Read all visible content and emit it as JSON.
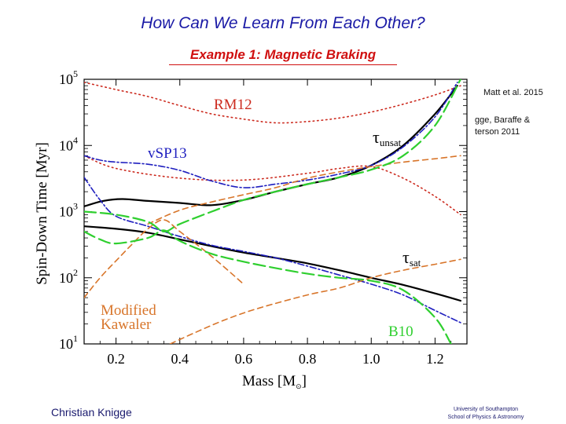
{
  "slide": {
    "title": "How Can We Learn From Each Other?",
    "subtitle": "Example 1: Magnetic Braking",
    "citation_1": "Matt et al. 2015",
    "citation_2": "gge, Baraffe & terson 2011",
    "author": "Christian Knigge",
    "institution_1": "University of Southampton",
    "institution_2": "School of Physics & Astronomy"
  },
  "colors": {
    "rm12": "#cc2a1e",
    "vsp13": "#1f1fbf",
    "modified_kawaler": "#d8752a",
    "b10": "#2fcf2f",
    "tau": "#000000"
  },
  "chart_data": {
    "type": "line",
    "xlabel": "Mass [M",
    "xlabel_suffix": "]",
    "ylabel": "Spin-Down Time [Myr]",
    "xlim": [
      0.1,
      1.3
    ],
    "ylim": [
      10,
      100000
    ],
    "yscale": "log",
    "xticks": [
      "0.2",
      "0.4",
      "0.6",
      "0.8",
      "1.0",
      "1.2"
    ],
    "yticks": [
      {
        "base": "10",
        "exp": "1"
      },
      {
        "base": "10",
        "exp": "2"
      },
      {
        "base": "10",
        "exp": "3"
      },
      {
        "base": "10",
        "exp": "4"
      },
      {
        "base": "10",
        "exp": "5"
      }
    ],
    "annotations": {
      "rm12": "RM12",
      "vsp13": "vSP13",
      "tau_unsat": "τ",
      "tau_unsat_sub": "unsat",
      "tau_sat": "τ",
      "tau_sat_sub": "sat",
      "modified_line1": "Modified",
      "modified_line2": "Kawaler",
      "b10": "B10"
    },
    "series": [
      {
        "key": "tau_unsat",
        "style": "solid",
        "color": "#000000",
        "x": [
          0.1,
          0.16,
          0.22,
          0.3,
          0.4,
          0.5,
          0.6,
          0.7,
          0.8,
          0.9,
          1.0,
          1.1,
          1.2,
          1.27
        ],
        "y": [
          1200,
          1450,
          1550,
          1450,
          1350,
          1250,
          1500,
          2000,
          2600,
          3300,
          5000,
          10000,
          30000,
          80000
        ]
      },
      {
        "key": "tau_sat",
        "style": "solid",
        "color": "#000000",
        "x": [
          0.1,
          0.2,
          0.3,
          0.4,
          0.5,
          0.6,
          0.7,
          0.8,
          0.9,
          1.0,
          1.1,
          1.2,
          1.28
        ],
        "y": [
          600,
          550,
          480,
          380,
          300,
          240,
          200,
          165,
          130,
          100,
          78,
          58,
          45
        ]
      },
      {
        "key": "rm12_upper",
        "style": "dotted",
        "color": "#cc2a1e",
        "x": [
          0.1,
          0.2,
          0.3,
          0.4,
          0.5,
          0.6,
          0.7,
          0.8,
          0.9,
          1.0,
          1.1,
          1.2,
          1.28
        ],
        "y": [
          90000,
          70000,
          55000,
          40000,
          30000,
          25000,
          22000,
          23000,
          26000,
          32000,
          42000,
          58000,
          80000
        ]
      },
      {
        "key": "rm12_lower",
        "style": "dotted",
        "color": "#cc2a1e",
        "x": [
          0.1,
          0.2,
          0.4,
          0.6,
          0.8,
          0.9,
          1.0,
          1.1,
          1.2,
          1.28
        ],
        "y": [
          7000,
          4500,
          3200,
          3000,
          3800,
          4500,
          4800,
          3200,
          1700,
          900
        ]
      },
      {
        "key": "vsp13_upper",
        "style": "dashdot",
        "color": "#1f1fbf",
        "x": [
          0.1,
          0.15,
          0.2,
          0.3,
          0.4,
          0.5,
          0.6,
          0.7,
          0.8,
          0.9,
          1.0,
          1.1,
          1.2,
          1.27
        ],
        "y": [
          7000,
          6000,
          5600,
          5200,
          4200,
          2900,
          2300,
          2600,
          3000,
          3700,
          5000,
          9500,
          27000,
          90000
        ]
      },
      {
        "key": "vsp13_lower",
        "style": "dashdot",
        "color": "#1f1fbf",
        "x": [
          0.1,
          0.15,
          0.2,
          0.3,
          0.4,
          0.5,
          0.6,
          0.7,
          0.8,
          0.9,
          1.0,
          1.1,
          1.2,
          1.28
        ],
        "y": [
          3300,
          1500,
          850,
          600,
          420,
          310,
          250,
          200,
          150,
          110,
          80,
          55,
          32,
          21
        ]
      },
      {
        "key": "mk_upper",
        "style": "dashed",
        "color": "#d8752a",
        "x": [
          0.3,
          0.4,
          0.5,
          0.6,
          0.7,
          0.8,
          0.9,
          1.0,
          1.1,
          1.2,
          1.28
        ],
        "y": [
          650,
          1050,
          1400,
          1800,
          2300,
          3200,
          4000,
          4800,
          5600,
          6300,
          7000
        ]
      },
      {
        "key": "mk_lower",
        "style": "dashed",
        "color": "#d8752a",
        "x": [
          0.1,
          0.15,
          0.2,
          0.25,
          0.3,
          0.35,
          0.4,
          0.5,
          0.6
        ],
        "y": [
          50,
          100,
          180,
          320,
          550,
          750,
          500,
          210,
          80
        ]
      },
      {
        "key": "mk_bottom",
        "style": "dashed",
        "color": "#d8752a",
        "x": [
          0.37,
          0.45,
          0.55,
          0.65,
          0.8,
          0.9,
          1.0,
          1.1,
          1.2,
          1.28
        ],
        "y": [
          10,
          15,
          24,
          35,
          55,
          70,
          100,
          130,
          160,
          190
        ]
      },
      {
        "key": "b10_upper",
        "style": "longdash",
        "color": "#2fcf2f",
        "x": [
          0.1,
          0.2,
          0.3,
          0.35,
          0.4,
          0.5,
          0.6,
          0.7,
          0.8,
          0.9,
          1.0,
          1.1,
          1.2,
          1.28
        ],
        "y": [
          1000,
          900,
          700,
          500,
          650,
          1000,
          1500,
          2000,
          2600,
          3300,
          4300,
          7000,
          20000,
          100000
        ]
      },
      {
        "key": "b10_lower",
        "style": "longdash",
        "color": "#2fcf2f",
        "x": [
          0.1,
          0.15,
          0.2,
          0.3,
          0.35,
          0.4,
          0.5,
          0.6,
          0.7,
          0.8,
          0.9,
          1.0,
          1.1,
          1.2,
          1.25
        ],
        "y": [
          500,
          380,
          330,
          400,
          520,
          360,
          230,
          175,
          140,
          115,
          100,
          90,
          65,
          25,
          10
        ]
      }
    ]
  }
}
